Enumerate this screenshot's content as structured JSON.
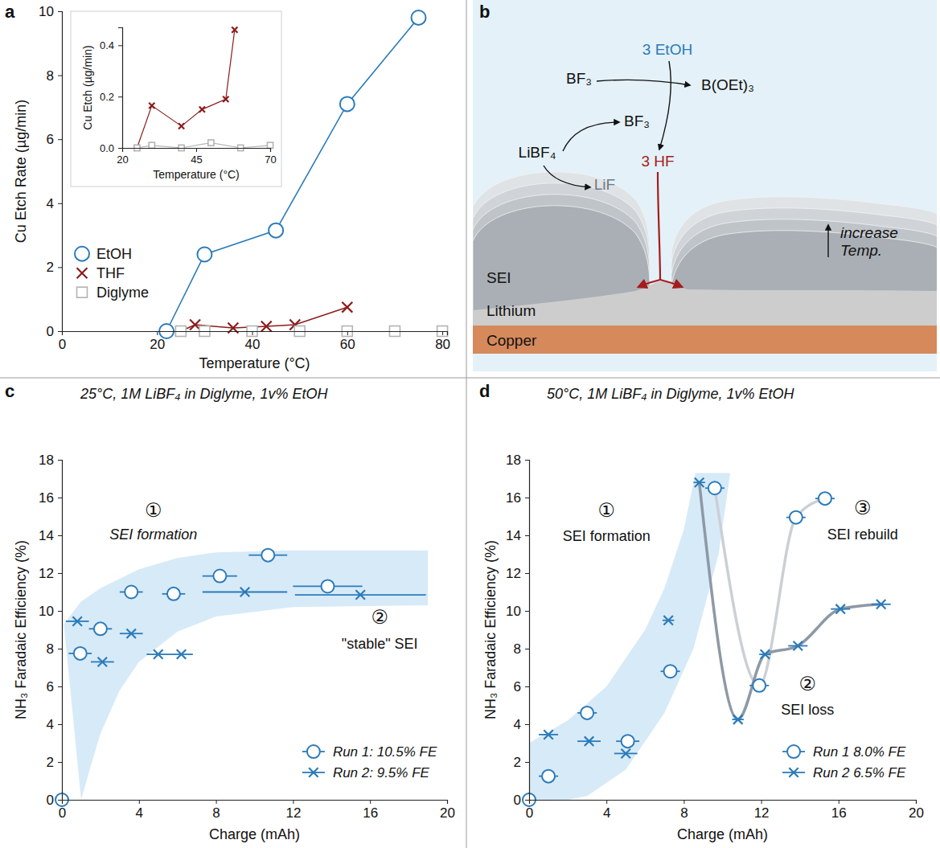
{
  "chart_data": [
    {
      "panel": "a",
      "type": "line",
      "x_label": "Temperature (°C)",
      "y_label": "Cu Etch Rate (µg/min)",
      "xlim": [
        0,
        81
      ],
      "ylim": [
        0,
        10
      ],
      "xticks": [
        0,
        20,
        40,
        60,
        80
      ],
      "yticks": [
        0,
        2,
        4,
        6,
        8,
        10
      ],
      "legend": "lower left",
      "series": [
        {
          "name": "EtOH",
          "color": "#2b7bba",
          "marker": "circle",
          "line_style": "solid",
          "x": [
            22,
            30,
            45,
            60,
            75
          ],
          "values": [
            0,
            2.4,
            3.15,
            7.1,
            9.8
          ]
        },
        {
          "name": "THF",
          "color": "#8b1c1c",
          "marker": "x",
          "line_style": "solid",
          "x": [
            25,
            28,
            36,
            43,
            49,
            60
          ],
          "values": [
            0,
            0.2,
            0.1,
            0.15,
            0.2,
            0.75
          ]
        },
        {
          "name": "Diglyme",
          "color": "#b3b3b3",
          "marker": "square",
          "line_style": "none",
          "x": [
            25,
            30,
            40,
            50,
            60,
            70,
            80
          ],
          "values": [
            0,
            0,
            0,
            0,
            0,
            0,
            0
          ]
        }
      ]
    },
    {
      "type": "line",
      "x_label": "Temperature (°C)",
      "y_label": "Cu Etch (µg/min)",
      "xlim": [
        20,
        70
      ],
      "ylim": [
        0,
        0.47
      ],
      "xticks": [
        20,
        45,
        70
      ],
      "yticks": [
        {
          "value": 0,
          "label": "0.0"
        },
        0.2,
        0.4
      ],
      "series": [
        {
          "color": "#8b1c1c",
          "marker": "x",
          "line_style": "solid",
          "x": [
            25,
            30,
            40,
            47,
            55,
            58
          ],
          "values": [
            0,
            0.165,
            0.085,
            0.15,
            0.19,
            0.46
          ]
        },
        {
          "color": "#b3b3b3",
          "marker": "square",
          "line_style": "solid",
          "x": [
            25,
            30,
            40,
            50,
            60,
            70
          ],
          "values": [
            0,
            0.01,
            0,
            0.02,
            0,
            0.01
          ]
        }
      ]
    },
    {
      "panel": "c",
      "type": "scatter",
      "title": "25°C, 1M LiBF₄ in Diglyme, 1v% EtOH",
      "x_label": "Charge (mAh)",
      "y_label": "NH₃ Faradaic Efficiency (%)",
      "xlim": [
        0,
        20
      ],
      "ylim": [
        0,
        18
      ],
      "xticks": [
        0,
        4,
        8,
        12,
        16,
        20
      ],
      "yticks": [
        0,
        2,
        4,
        6,
        8,
        10,
        12,
        14,
        16,
        18
      ],
      "legend": "lower right",
      "series": [
        {
          "name": "Run 1: 10.5% FE",
          "color": "#2b7bba",
          "marker": "circle",
          "x": [
            0,
            0.95,
            2.0,
            3.6,
            5.8,
            8.2,
            10.7,
            13.8
          ],
          "x_err": [
            0,
            0.6,
            0.6,
            0.6,
            0.6,
            0.9,
            1.0,
            1.8
          ],
          "values": [
            0,
            7.75,
            9.05,
            11.0,
            10.9,
            11.85,
            12.95,
            11.3
          ]
        },
        {
          "name": "Run 2: 9.5% FE",
          "color": "#2b7bba",
          "marker": "x",
          "x": [
            0.8,
            2.1,
            3.6,
            5.0,
            6.2,
            9.5,
            15.5
          ],
          "x_err": [
            0.6,
            0.6,
            0.6,
            0.6,
            0.6,
            2.2,
            3.4
          ],
          "values": [
            9.45,
            7.3,
            8.8,
            7.7,
            7.7,
            11.0,
            10.85
          ]
        }
      ],
      "band": {
        "color": "#d7eaf8",
        "x": [
          0.1,
          1,
          2,
          4,
          6,
          8,
          12,
          19,
          19,
          12,
          8,
          6,
          4,
          3,
          2,
          1.5,
          1
        ],
        "values": [
          9.3,
          10.5,
          11.2,
          12.2,
          12.8,
          13.1,
          13.2,
          13.2,
          10.3,
          10.2,
          9.7,
          8.9,
          7.3,
          5.8,
          3.5,
          1.8,
          0
        ]
      },
      "annotations": [
        "①",
        "SEI formation",
        "②",
        "\"stable\" SEI"
      ]
    },
    {
      "panel": "d",
      "type": "scatter",
      "title": "50°C, 1M LiBF₄ in Diglyme, 1v% EtOH",
      "x_label": "Charge (mAh)",
      "y_label": "NH₃ Faradaic Efficiency (%)",
      "xlim": [
        0,
        20
      ],
      "ylim": [
        0,
        18
      ],
      "xticks": [
        0,
        4,
        8,
        12,
        16,
        20
      ],
      "yticks": [
        0,
        2,
        4,
        6,
        8,
        10,
        12,
        14,
        16,
        18
      ],
      "legend": "lower right",
      "series": [
        {
          "name": "Run 1 8.0% FE",
          "color": "#2b7bba",
          "marker": "circle",
          "x": [
            0,
            1.0,
            3.0,
            5.1,
            7.3,
            9.6,
            11.9,
            13.8,
            15.3
          ],
          "x_err": [
            0,
            0.5,
            0.5,
            0.6,
            0.5,
            0.5,
            0.5,
            0.5,
            0.5
          ],
          "values": [
            0,
            1.25,
            4.6,
            3.1,
            6.8,
            16.5,
            6.05,
            14.95,
            15.95
          ]
        },
        {
          "name": "Run 2 6.5% FE",
          "color": "#2b7bba",
          "marker": "x",
          "x": [
            1.0,
            3.1,
            5.0,
            7.2,
            8.8,
            10.8,
            12.2,
            13.9,
            16.1,
            18.2
          ],
          "x_err": [
            0.5,
            0.6,
            0.6,
            0.3,
            0.3,
            0.3,
            0.3,
            0.5,
            0.5,
            0.5
          ],
          "values": [
            3.45,
            3.1,
            2.45,
            9.5,
            16.8,
            4.25,
            7.7,
            8.15,
            10.1,
            10.35
          ]
        }
      ],
      "band": {
        "color": "#d7eaf8",
        "x": [
          0,
          2,
          4,
          6,
          7,
          8,
          8.6,
          10.4,
          9.8,
          8.5,
          7,
          5,
          3,
          2,
          0
        ],
        "values": [
          3,
          4.2,
          6,
          9,
          11.2,
          14.3,
          17.3,
          17.3,
          13,
          8,
          4.6,
          1.6,
          0.2,
          0,
          0
        ]
      },
      "guides": [
        {
          "color": "#cbd0d6",
          "x": [
            9.6,
            11.9,
            13.8,
            15.3
          ],
          "values": [
            16.5,
            6.05,
            14.95,
            15.95
          ]
        },
        {
          "color": "#8e99a6",
          "x": [
            8.8,
            10.8,
            12.2,
            13.9,
            16.1,
            18.2
          ],
          "values": [
            16.8,
            4.25,
            7.7,
            8.15,
            10.1,
            10.35
          ]
        }
      ],
      "annotations": [
        "①",
        "SEI formation",
        "②",
        "SEI loss",
        "③",
        "SEI rebuild"
      ]
    }
  ],
  "diagram": {
    "panel": "b",
    "labels": {
      "ethanol": "3 EtOH",
      "bf3_top": "BF₃",
      "borate": "B(OEt)₃",
      "hf": "3 HF",
      "salt": "LiBF₄",
      "bf3": "BF₃",
      "lif": "LiF",
      "temperature": "increase Temp.",
      "sei": "SEI",
      "lithium": "Lithium",
      "copper": "Copper"
    }
  }
}
